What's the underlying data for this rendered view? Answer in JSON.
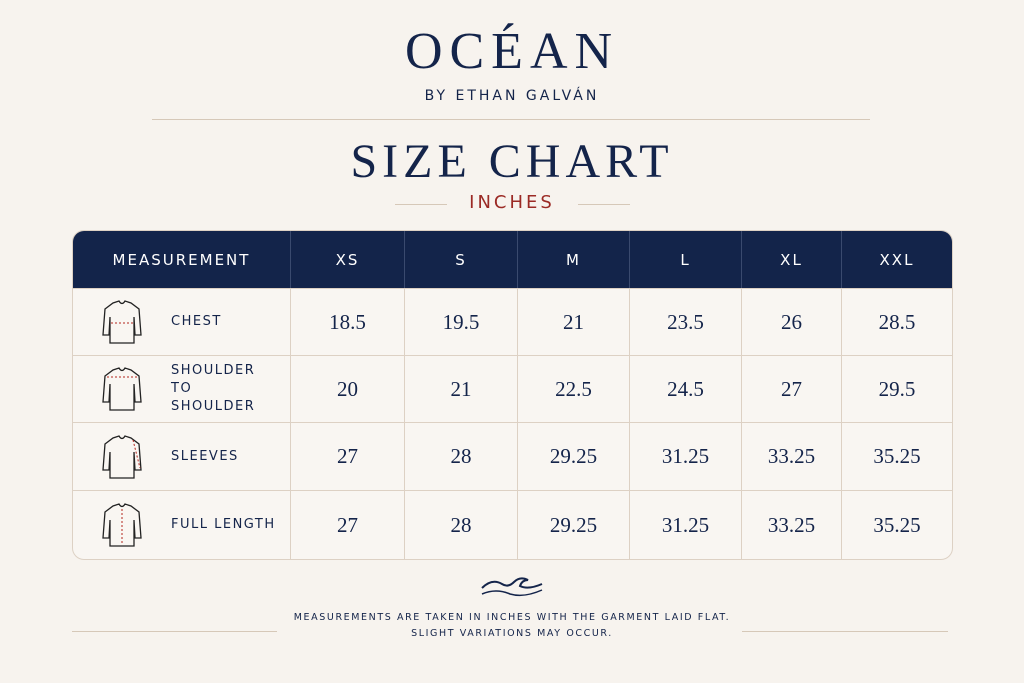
{
  "header": {
    "brand": "OCÉAN",
    "byline": "BY ETHAN GALVÁN"
  },
  "title": "SIZE CHART",
  "unit": "INCHES",
  "table": {
    "columns": [
      "MEASUREMENT",
      "XS",
      "S",
      "M",
      "L",
      "XL",
      "XXL"
    ],
    "rows": [
      {
        "label": "CHEST",
        "values": [
          18.5,
          19.5,
          21,
          23.5,
          26,
          28.5
        ]
      },
      {
        "label": "SHOULDER TO SHOULDER",
        "values": [
          20,
          21,
          22.5,
          24.5,
          27,
          29.5
        ]
      },
      {
        "label": "SLEEVES",
        "values": [
          27,
          28,
          29.25,
          31.25,
          33.25,
          35.25
        ]
      },
      {
        "label": "FULL LENGTH",
        "values": [
          27,
          28,
          29.25,
          31.25,
          33.25,
          35.25
        ]
      }
    ]
  },
  "footer": {
    "lines": [
      "MEASUREMENTS ARE TAKEN IN INCHES WITH THE GARMENT LAID FLAT.",
      "SLIGHT VARIATIONS MAY OCCUR."
    ]
  }
}
